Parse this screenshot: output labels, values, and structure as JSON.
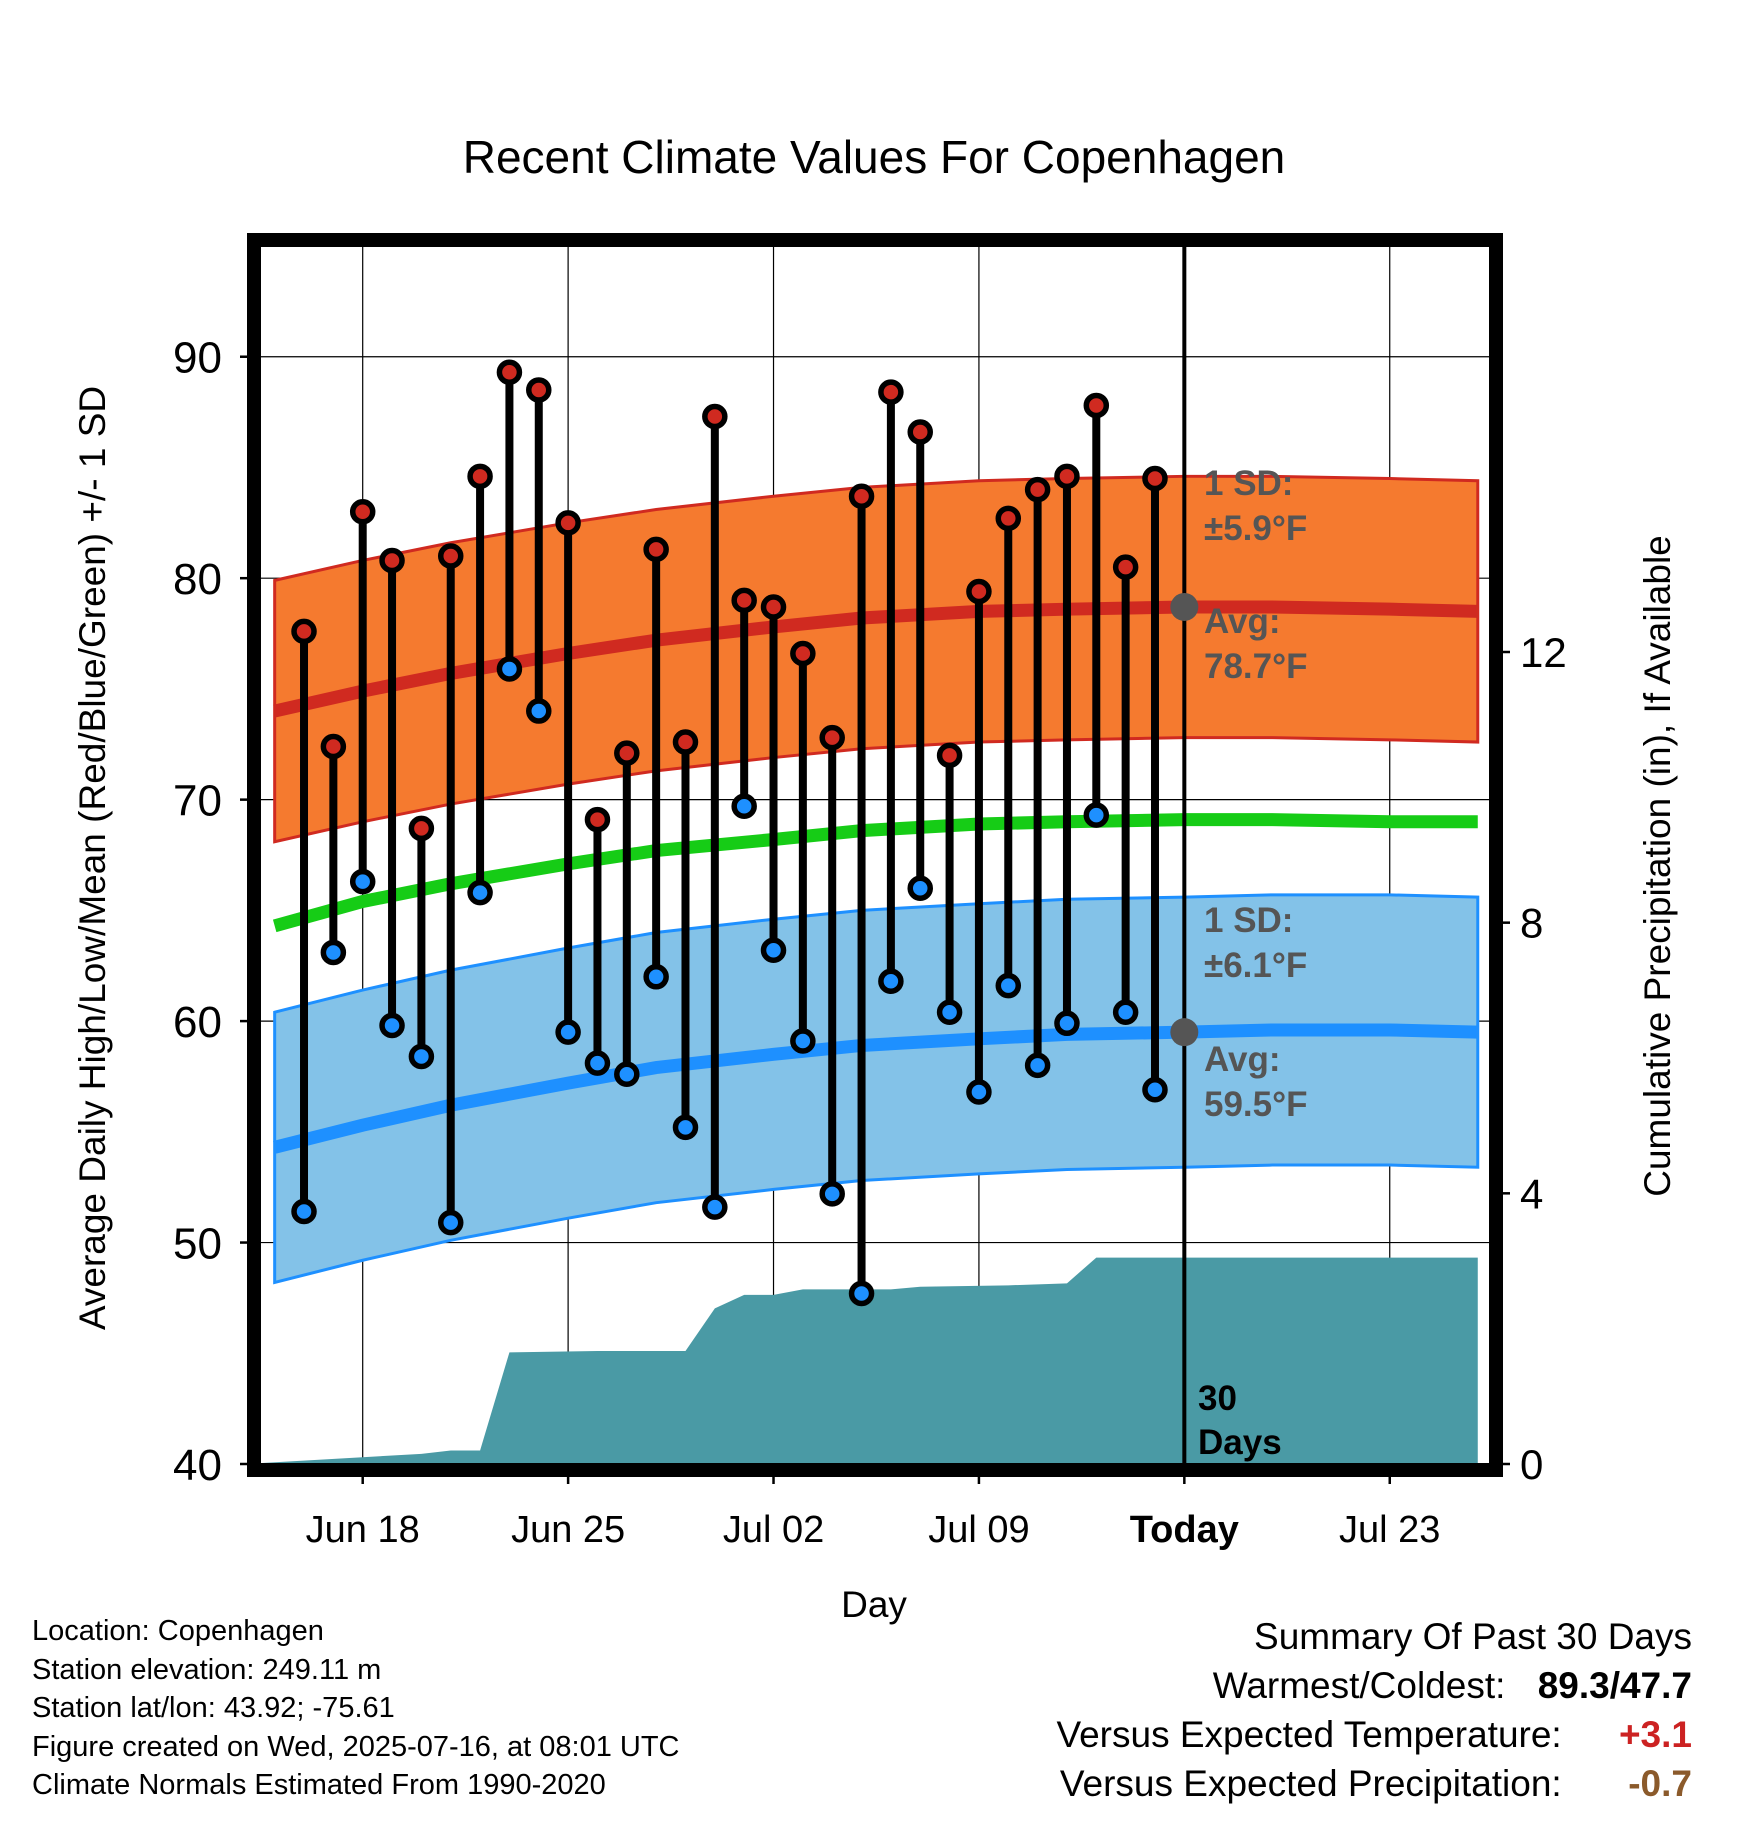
{
  "title": "Recent Climate Values For Copenhagen",
  "chart_data": {
    "type": "line",
    "title": "Recent Climate Values For Copenhagen",
    "xlabel": "Day",
    "ylabel": "Average Daily High/Low/Mean (Red/Blue/Green) +/- 1 SD",
    "y2label": "Cumulative Precipitation (in), If Available",
    "ylim": [
      40,
      95
    ],
    "y2lim": [
      0,
      18
    ],
    "y_ticks": [
      "40",
      "50",
      "60",
      "70",
      "80",
      "90"
    ],
    "y2_ticks": [
      "0",
      "4",
      "8",
      "12"
    ],
    "x_ticks": [
      "Jun 18",
      "Jun 25",
      "Jul 02",
      "Jul 09",
      "Today",
      "Jul 23"
    ],
    "x_range": [
      "2025-06-14T12:00",
      "2025-07-26T10:00"
    ],
    "x_tick_dates": [
      "2025-06-18",
      "2025-06-25",
      "2025-07-02",
      "2025-07-09",
      "2025-07-16",
      "2025-07-23"
    ],
    "today": "2025-07-16",
    "grid": true,
    "normals": {
      "dates": [
        "2025-06-15",
        "2025-06-18",
        "2025-06-21",
        "2025-06-25",
        "2025-06-28",
        "2025-07-02",
        "2025-07-05",
        "2025-07-09",
        "2025-07-12",
        "2025-07-16",
        "2025-07-19",
        "2025-07-23",
        "2025-07-26"
      ],
      "high_mean": [
        74.0,
        74.9,
        75.7,
        76.6,
        77.2,
        77.8,
        78.2,
        78.5,
        78.6,
        78.7,
        78.7,
        78.6,
        78.5
      ],
      "high_sd": 5.9,
      "low_mean": [
        54.3,
        55.3,
        56.2,
        57.2,
        57.9,
        58.5,
        58.9,
        59.2,
        59.4,
        59.5,
        59.6,
        59.6,
        59.5
      ],
      "low_sd": 6.1,
      "daily_mean": [
        64.3,
        65.4,
        66.2,
        67.1,
        67.7,
        68.2,
        68.6,
        68.9,
        69.0,
        69.1,
        69.1,
        69.0,
        69.0
      ]
    },
    "series": [
      {
        "name": "High",
        "dates": [
          "2025-06-16",
          "2025-06-17",
          "2025-06-18",
          "2025-06-19",
          "2025-06-20",
          "2025-06-21",
          "2025-06-22",
          "2025-06-23",
          "2025-06-24",
          "2025-06-25",
          "2025-06-26",
          "2025-06-27",
          "2025-06-28",
          "2025-06-29",
          "2025-06-30",
          "2025-07-01",
          "2025-07-02",
          "2025-07-03",
          "2025-07-04",
          "2025-07-05",
          "2025-07-06",
          "2025-07-07",
          "2025-07-08",
          "2025-07-09",
          "2025-07-10",
          "2025-07-11",
          "2025-07-12",
          "2025-07-13",
          "2025-07-14",
          "2025-07-15"
        ],
        "values": [
          77.6,
          72.4,
          83.0,
          80.8,
          68.7,
          81.0,
          84.6,
          89.3,
          88.5,
          82.5,
          69.1,
          72.1,
          81.3,
          72.6,
          87.3,
          79.0,
          78.7,
          76.6,
          72.8,
          83.7,
          88.4,
          86.6,
          72.0,
          79.4,
          82.7,
          84.0,
          84.6,
          87.8,
          80.5,
          84.5
        ]
      },
      {
        "name": "Low",
        "dates": [
          "2025-06-16",
          "2025-06-17",
          "2025-06-18",
          "2025-06-19",
          "2025-06-20",
          "2025-06-21",
          "2025-06-22",
          "2025-06-23",
          "2025-06-24",
          "2025-06-25",
          "2025-06-26",
          "2025-06-27",
          "2025-06-28",
          "2025-06-29",
          "2025-06-30",
          "2025-07-01",
          "2025-07-02",
          "2025-07-03",
          "2025-07-04",
          "2025-07-05",
          "2025-07-06",
          "2025-07-07",
          "2025-07-08",
          "2025-07-09",
          "2025-07-10",
          "2025-07-11",
          "2025-07-12",
          "2025-07-13",
          "2025-07-14",
          "2025-07-15"
        ],
        "values": [
          51.4,
          63.1,
          66.3,
          59.8,
          58.4,
          50.9,
          65.8,
          75.9,
          74.0,
          59.5,
          58.1,
          57.6,
          62.0,
          55.2,
          51.6,
          69.7,
          63.2,
          59.1,
          52.2,
          47.7,
          61.8,
          66.0,
          60.4,
          56.8,
          61.6,
          58.0,
          59.9,
          69.3,
          60.4,
          56.9
        ]
      },
      {
        "name": "Cumulative Precipitation",
        "dates": [
          "2025-06-14",
          "2025-06-20",
          "2025-06-21",
          "2025-06-22",
          "2025-06-23",
          "2025-06-26",
          "2025-06-29",
          "2025-06-30",
          "2025-07-01",
          "2025-07-02",
          "2025-07-03",
          "2025-07-06",
          "2025-07-07",
          "2025-07-10",
          "2025-07-12",
          "2025-07-13",
          "2025-07-26"
        ],
        "values": [
          0.0,
          0.15,
          0.2,
          0.2,
          1.65,
          1.67,
          1.67,
          2.3,
          2.5,
          2.5,
          2.58,
          2.58,
          2.62,
          2.64,
          2.67,
          3.05,
          3.05
        ]
      }
    ],
    "annotations": {
      "high_sd_label": "1 SD:",
      "high_sd_value": "±5.9°F",
      "high_avg_label": "Avg:",
      "high_avg_value": "78.7°F",
      "low_sd_label": "1 SD:",
      "low_sd_value": "±6.1°F",
      "low_avg_label": "Avg:",
      "low_avg_value": "59.5°F",
      "days_number": "30",
      "days_word": "Days"
    },
    "colors": {
      "high_band": "#F57A2F",
      "high_line": "#D02A20",
      "low_band": "#83C2E8",
      "low_line": "#1E90FF",
      "mean_line": "#16CC16",
      "precip": "#4A9AA5",
      "high_marker": "#D02A20",
      "low_marker": "#1E90FF",
      "annotation": "#555555"
    }
  },
  "metadata": {
    "location": "Location: Copenhagen",
    "elevation": "Station elevation: 249.11 m",
    "latlon": "Station lat/lon: 43.92; -75.61",
    "created": "Figure created on Wed, 2025-07-16, at 08:01 UTC",
    "normals": "Climate Normals Estimated From 1990-2020"
  },
  "summary": {
    "title": "Summary Of Past 30 Days",
    "warmest_coldest_label": "Warmest/Coldest:",
    "warmest_coldest_value": "89.3/47.7",
    "temp_label": "Versus Expected Temperature:",
    "temp_value": "+3.1",
    "temp_color": "#CC2222",
    "precip_label": "Versus Expected Precipitation:",
    "precip_value": "-0.7",
    "precip_color": "#8B5A2B"
  }
}
